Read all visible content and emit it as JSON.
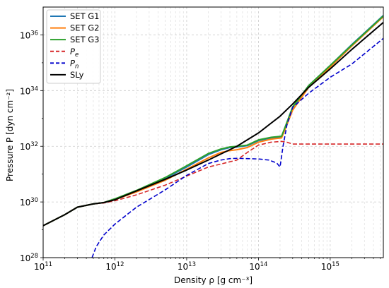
{
  "chart_data": {
    "type": "line",
    "title": "",
    "xlabel": "Density ρ [g cm⁻³]",
    "ylabel": "Pressure P [dyn cm⁻²]",
    "x_scale": "log",
    "y_scale": "log",
    "xlim": [
      100000000000.0,
      5500000000000000.0
    ],
    "ylim": [
      1e+28,
      1e+37
    ],
    "grid": true,
    "legend_position": "top-left",
    "x_ticks": [
      {
        "label_base": "10",
        "label_exp": "11"
      },
      {
        "label_base": "10",
        "label_exp": "12"
      },
      {
        "label_base": "10",
        "label_exp": "13"
      },
      {
        "label_base": "10",
        "label_exp": "14"
      },
      {
        "label_base": "10",
        "label_exp": "15"
      }
    ],
    "y_ticks": [
      {
        "label_base": "10",
        "label_exp": "28"
      },
      {
        "label_base": "10",
        "label_exp": "30"
      },
      {
        "label_base": "10",
        "label_exp": "32"
      },
      {
        "label_base": "10",
        "label_exp": "34"
      },
      {
        "label_base": "10",
        "label_exp": "36"
      }
    ],
    "series": [
      {
        "name": "SET G1",
        "color": "#1f77b4",
        "dash": "solid",
        "points": [
          [
            100000000000.0,
            1.4e+29
          ],
          [
            200000000000.0,
            3.5e+29
          ],
          [
            300000000000.0,
            6.5e+29
          ],
          [
            500000000000.0,
            8.5e+29
          ],
          [
            700000000000.0,
            9.5e+29
          ],
          [
            1000000000000.0,
            1.25e+30
          ],
          [
            2000000000000.0,
            2.5e+30
          ],
          [
            5000000000000.0,
            7e+30
          ],
          [
            10000000000000.0,
            1.8e+31
          ],
          [
            20000000000000.0,
            5e+31
          ],
          [
            30000000000000.0,
            7.5e+31
          ],
          [
            40000000000000.0,
            9e+31
          ],
          [
            50000000000000.0,
            9.5e+31
          ],
          [
            70000000000000.0,
            1.05e+32
          ],
          [
            100000000000000.0,
            1.6e+32
          ],
          [
            150000000000000.0,
            2e+32
          ],
          [
            210000000000000.0,
            2.2e+32
          ],
          [
            230000000000000.0,
            4e+32
          ],
          [
            300000000000000.0,
            2.5e+33
          ],
          [
            500000000000000.0,
            1.5e+34
          ],
          [
            1000000000000000.0,
            8e+34
          ],
          [
            2000000000000000.0,
            4.5e+35
          ],
          [
            5500000000000000.0,
            5e+36
          ]
        ]
      },
      {
        "name": "SET G2",
        "color": "#ff7f0e",
        "dash": "solid",
        "points": [
          [
            100000000000.0,
            1.4e+29
          ],
          [
            200000000000.0,
            3.5e+29
          ],
          [
            300000000000.0,
            6.5e+29
          ],
          [
            500000000000.0,
            8.5e+29
          ],
          [
            700000000000.0,
            9.5e+29
          ],
          [
            1000000000000.0,
            1.2e+30
          ],
          [
            2000000000000.0,
            2.3e+30
          ],
          [
            5000000000000.0,
            6e+30
          ],
          [
            10000000000000.0,
            1.5e+31
          ],
          [
            20000000000000.0,
            3.8e+31
          ],
          [
            30000000000000.0,
            6e+31
          ],
          [
            40000000000000.0,
            7e+31
          ],
          [
            50000000000000.0,
            7.5e+31
          ],
          [
            70000000000000.0,
            9e+31
          ],
          [
            100000000000000.0,
            1.4e+32
          ],
          [
            150000000000000.0,
            1.8e+32
          ],
          [
            210000000000000.0,
            2e+32
          ],
          [
            230000000000000.0,
            3.5e+32
          ],
          [
            300000000000000.0,
            2e+33
          ],
          [
            500000000000000.0,
            1.3e+34
          ],
          [
            1000000000000000.0,
            7e+34
          ],
          [
            2000000000000000.0,
            4e+35
          ],
          [
            5500000000000000.0,
            4.5e+36
          ]
        ]
      },
      {
        "name": "SET G3",
        "color": "#2ca02c",
        "dash": "solid",
        "points": [
          [
            100000000000.0,
            1.4e+29
          ],
          [
            200000000000.0,
            3.5e+29
          ],
          [
            300000000000.0,
            6.5e+29
          ],
          [
            500000000000.0,
            8.5e+29
          ],
          [
            700000000000.0,
            9.5e+29
          ],
          [
            1000000000000.0,
            1.3e+30
          ],
          [
            2000000000000.0,
            2.6e+30
          ],
          [
            5000000000000.0,
            7.5e+30
          ],
          [
            10000000000000.0,
            2e+31
          ],
          [
            20000000000000.0,
            5.5e+31
          ],
          [
            30000000000000.0,
            8e+31
          ],
          [
            40000000000000.0,
            9.5e+31
          ],
          [
            50000000000000.0,
            1e+32
          ],
          [
            70000000000000.0,
            1.1e+32
          ],
          [
            100000000000000.0,
            1.7e+32
          ],
          [
            150000000000000.0,
            2.1e+32
          ],
          [
            210000000000000.0,
            2.3e+32
          ],
          [
            230000000000000.0,
            4.2e+32
          ],
          [
            300000000000000.0,
            2.6e+33
          ],
          [
            500000000000000.0,
            1.5e+34
          ],
          [
            1000000000000000.0,
            8e+34
          ],
          [
            2000000000000000.0,
            4.3e+35
          ],
          [
            5500000000000000.0,
            4.8e+36
          ]
        ]
      },
      {
        "name": "P_e",
        "legend_base": "P",
        "legend_sub": "e",
        "color": "#d62728",
        "dash": "dashed",
        "points": [
          [
            100000000000.0,
            1.4e+29
          ],
          [
            200000000000.0,
            3.5e+29
          ],
          [
            300000000000.0,
            6.5e+29
          ],
          [
            500000000000.0,
            8.5e+29
          ],
          [
            700000000000.0,
            9.2e+29
          ],
          [
            1000000000000.0,
            1.1e+30
          ],
          [
            2000000000000.0,
            1.8e+30
          ],
          [
            5000000000000.0,
            4e+30
          ],
          [
            10000000000000.0,
            8.5e+30
          ],
          [
            20000000000000.0,
            1.8e+31
          ],
          [
            30000000000000.0,
            2.3e+31
          ],
          [
            50000000000000.0,
            3.2e+31
          ],
          [
            70000000000000.0,
            6e+31
          ],
          [
            100000000000000.0,
            1.1e+32
          ],
          [
            150000000000000.0,
            1.4e+32
          ],
          [
            210000000000000.0,
            1.5e+32
          ],
          [
            250000000000000.0,
            1.4e+32
          ],
          [
            300000000000000.0,
            1.2e+32
          ],
          [
            1000000000000000.0,
            1.2e+32
          ],
          [
            5500000000000000.0,
            1.2e+32
          ]
        ]
      },
      {
        "name": "P_n",
        "legend_base": "P",
        "legend_sub": "n",
        "color": "#0000cc",
        "dash": "dashed",
        "points": [
          [
            480000000000.0,
            1e+28
          ],
          [
            550000000000.0,
            2.5e+28
          ],
          [
            700000000000.0,
            6.5e+28
          ],
          [
            1000000000000.0,
            1.6e+29
          ],
          [
            2000000000000.0,
            6.5e+29
          ],
          [
            5000000000000.0,
            2.7e+30
          ],
          [
            10000000000000.0,
            9e+30
          ],
          [
            20000000000000.0,
            2.4e+31
          ],
          [
            30000000000000.0,
            3.2e+31
          ],
          [
            40000000000000.0,
            3.6e+31
          ],
          [
            50000000000000.0,
            3.7e+31
          ],
          [
            70000000000000.0,
            3.6e+31
          ],
          [
            100000000000000.0,
            3.5e+31
          ],
          [
            140000000000000.0,
            3.2e+31
          ],
          [
            180000000000000.0,
            2.5e+31
          ],
          [
            200000000000000.0,
            1.8e+31
          ],
          [
            220000000000000.0,
            1e+32
          ],
          [
            250000000000000.0,
            6e+32
          ],
          [
            300000000000000.0,
            2.5e+33
          ],
          [
            500000000000000.0,
            8e+33
          ],
          [
            1000000000000000.0,
            3e+34
          ],
          [
            2000000000000000.0,
            9e+34
          ],
          [
            5500000000000000.0,
            7.5e+35
          ]
        ]
      },
      {
        "name": "SLy",
        "color": "#000000",
        "dash": "solid",
        "points": [
          [
            100000000000.0,
            1.4e+29
          ],
          [
            200000000000.0,
            3.5e+29
          ],
          [
            300000000000.0,
            6.5e+29
          ],
          [
            500000000000.0,
            8.5e+29
          ],
          [
            700000000000.0,
            9.5e+29
          ],
          [
            1000000000000.0,
            1.2e+30
          ],
          [
            2000000000000.0,
            2.5e+30
          ],
          [
            5000000000000.0,
            6.5e+30
          ],
          [
            10000000000000.0,
            1.4e+31
          ],
          [
            20000000000000.0,
            3.2e+31
          ],
          [
            50000000000000.0,
            1e+32
          ],
          [
            100000000000000.0,
            3e+32
          ],
          [
            200000000000000.0,
            1.2e+33
          ],
          [
            300000000000000.0,
            3.3e+33
          ],
          [
            500000000000000.0,
            1.3e+34
          ],
          [
            1000000000000000.0,
            6e+34
          ],
          [
            2000000000000000.0,
            3e+35
          ],
          [
            5500000000000000.0,
            2.8e+36
          ]
        ]
      }
    ]
  }
}
